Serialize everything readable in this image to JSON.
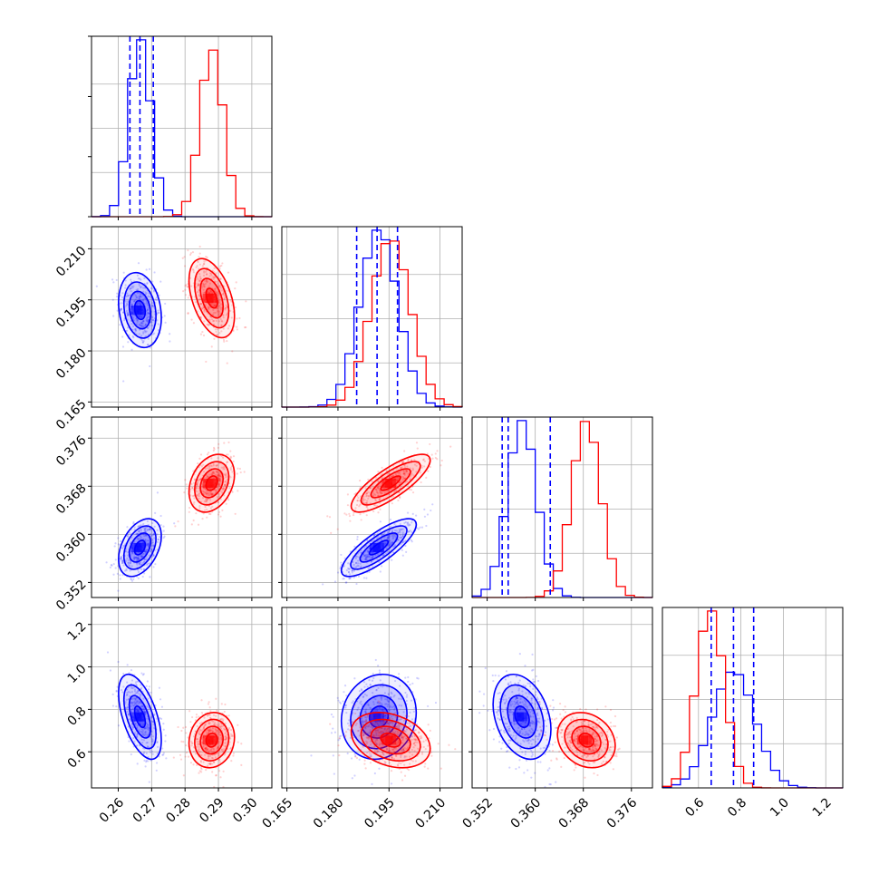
{
  "chart_data": {
    "type": "corner",
    "grid": true,
    "colors": {
      "blue_series": "#0000ff",
      "red_series": "#ff0000"
    },
    "parameters": [
      {
        "range": [
          0.252,
          0.306
        ],
        "ticks": [
          0.26,
          0.27,
          0.28,
          0.29,
          0.3
        ],
        "tick_labels": [
          "0.26",
          "0.27",
          "0.28",
          "0.29",
          "0.30"
        ]
      },
      {
        "range": [
          0.1635,
          0.2165
        ],
        "ticks": [
          0.165,
          0.18,
          0.195,
          0.21
        ],
        "tick_labels": [
          "0.165",
          "0.180",
          "0.195",
          "0.210"
        ]
      },
      {
        "range": [
          0.3495,
          0.3795
        ],
        "ticks": [
          0.352,
          0.36,
          0.368,
          0.376
        ],
        "tick_labels": [
          "0.352",
          "0.360",
          "0.368",
          "0.376"
        ]
      },
      {
        "range": [
          0.43,
          1.28
        ],
        "ticks": [
          0.6,
          0.8,
          1.0,
          1.2
        ],
        "tick_labels": [
          "0.6",
          "0.8",
          "1.0",
          "1.2"
        ]
      }
    ],
    "series": [
      {
        "color": "#0000ff",
        "mean": [
          0.2665,
          0.192,
          0.3578,
          0.765
        ],
        "std": [
          0.0032,
          0.0055,
          0.0024,
          0.1
        ],
        "corr": [
          [
            1,
            -0.2,
            0.4,
            -0.55
          ],
          [
            -0.2,
            1,
            0.8,
            0.1
          ],
          [
            0.4,
            0.8,
            1,
            -0.3
          ],
          [
            -0.55,
            0.1,
            -0.3,
            1
          ]
        ],
        "quantiles": [
          [
            0.2635,
            0.2665,
            0.2705
          ],
          [
            0.1855,
            0.1915,
            0.1975
          ],
          [
            0.3545,
            0.3555,
            0.3625
          ],
          [
            0.66,
            0.765,
            0.86
          ]
        ]
      },
      {
        "color": "#ff0000",
        "mean": [
          0.288,
          0.1955,
          0.3685,
          0.655
        ],
        "std": [
          0.0034,
          0.0058,
          0.0024,
          0.065
        ],
        "corr": [
          [
            1,
            -0.45,
            0.3,
            0.1
          ],
          [
            -0.45,
            1,
            0.8,
            -0.3
          ],
          [
            0.3,
            0.8,
            1,
            -0.2
          ],
          [
            0.1,
            -0.3,
            -0.2,
            1
          ]
        ],
        "quantiles": [
          [
            0.285,
            0.288,
            0.291
          ],
          [
            0.19,
            0.1955,
            0.201
          ],
          [
            0.366,
            0.3685,
            0.371
          ],
          [
            0.61,
            0.655,
            0.71
          ]
        ]
      }
    ],
    "quantile_lines_series": "blue",
    "contour_levels_sigma": [
      0.5,
      1.0,
      1.5,
      2.0
    ]
  }
}
